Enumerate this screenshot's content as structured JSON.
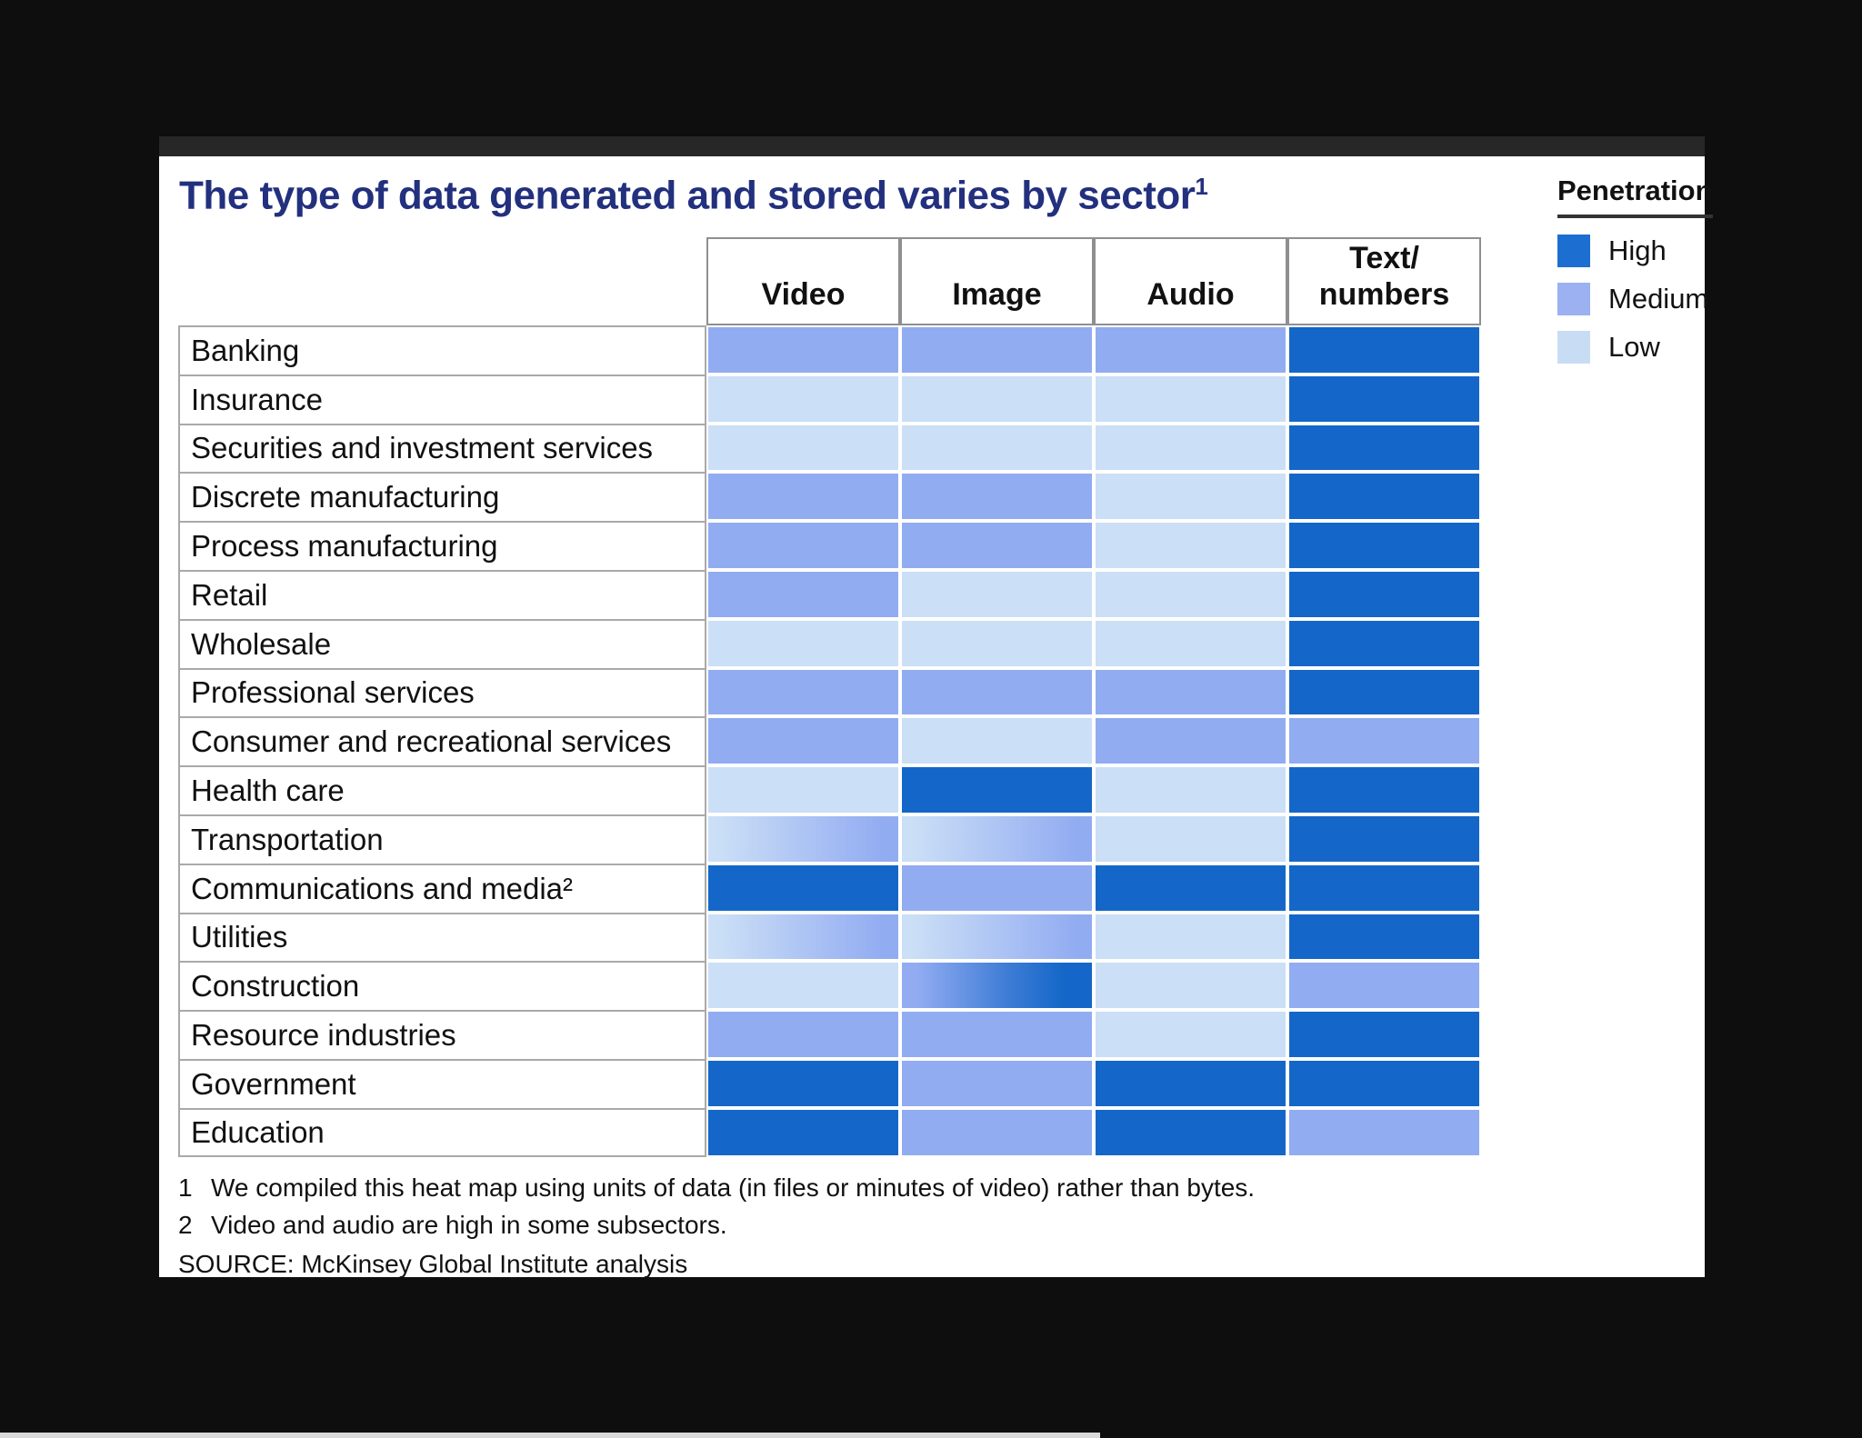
{
  "title": {
    "text": "The type of data generated and stored varies by sector",
    "superscript": "1"
  },
  "legend": {
    "title": "Penetration",
    "items": [
      {
        "label": "High",
        "level": "high"
      },
      {
        "label": "Medium",
        "level": "medium"
      },
      {
        "label": "Low",
        "level": "low"
      }
    ]
  },
  "columns": [
    {
      "label_lines": [
        "Video"
      ]
    },
    {
      "label_lines": [
        "Image"
      ]
    },
    {
      "label_lines": [
        "Audio"
      ]
    },
    {
      "label_lines": [
        "Text/",
        "numbers"
      ]
    }
  ],
  "rows": [
    {
      "label": "Banking",
      "cells": [
        "medium",
        "medium",
        "medium",
        "high"
      ]
    },
    {
      "label": "Insurance",
      "cells": [
        "low",
        "low",
        "low",
        "high"
      ]
    },
    {
      "label": "Securities and investment services",
      "cells": [
        "low",
        "low",
        "low",
        "high"
      ]
    },
    {
      "label": "Discrete manufacturing",
      "cells": [
        "medium",
        "medium",
        "low",
        "high"
      ]
    },
    {
      "label": "Process manufacturing",
      "cells": [
        "medium",
        "medium",
        "low",
        "high"
      ]
    },
    {
      "label": "Retail",
      "cells": [
        "medium",
        "low",
        "low",
        "high"
      ]
    },
    {
      "label": "Wholesale",
      "cells": [
        "low",
        "low",
        "low",
        "high"
      ]
    },
    {
      "label": "Professional services",
      "cells": [
        "medium",
        "medium",
        "medium",
        "high"
      ]
    },
    {
      "label": "Consumer and recreational services",
      "cells": [
        "medium",
        "low",
        "medium",
        "medium"
      ]
    },
    {
      "label": "Health care",
      "cells": [
        "low",
        "high",
        "low",
        "high"
      ]
    },
    {
      "label": "Transportation",
      "cells": [
        "low-medium",
        "low-medium",
        "low",
        "high"
      ]
    },
    {
      "label": "Communications and media²",
      "cells": [
        "high",
        "medium",
        "high",
        "high"
      ]
    },
    {
      "label": "Utilities",
      "cells": [
        "low-medium",
        "low-medium",
        "low",
        "high"
      ]
    },
    {
      "label": "Construction",
      "cells": [
        "low",
        "medium-high",
        "low",
        "medium"
      ]
    },
    {
      "label": "Resource industries",
      "cells": [
        "medium",
        "medium",
        "low",
        "high"
      ]
    },
    {
      "label": "Government",
      "cells": [
        "high",
        "medium",
        "high",
        "high"
      ]
    },
    {
      "label": "Education",
      "cells": [
        "high",
        "medium",
        "high",
        "medium"
      ]
    }
  ],
  "footnotes": [
    {
      "marker": "1",
      "text": "We compiled this heat map using units of data (in files or minutes of video) rather than bytes."
    },
    {
      "marker": "2",
      "text": "Video and audio are high in some subsectors."
    }
  ],
  "source": "SOURCE: McKinsey Global Institute analysis",
  "colors": {
    "high": "#1467c8",
    "medium": "#92acf2",
    "low": "#cbdff6",
    "title": "#23307e",
    "background": "#0e0e0e",
    "panel": "#ffffff"
  },
  "chart_data": {
    "type": "heatmap",
    "title": "The type of data generated and stored varies by sector",
    "legend_title": "Penetration",
    "legend_levels": [
      "High",
      "Medium",
      "Low"
    ],
    "columns": [
      "Video",
      "Image",
      "Audio",
      "Text/numbers"
    ],
    "rows": [
      "Banking",
      "Insurance",
      "Securities and investment services",
      "Discrete manufacturing",
      "Process manufacturing",
      "Retail",
      "Wholesale",
      "Professional services",
      "Consumer and recreational services",
      "Health care",
      "Transportation",
      "Communications and media²",
      "Utilities",
      "Construction",
      "Resource industries",
      "Government",
      "Education"
    ],
    "values": [
      [
        "medium",
        "medium",
        "medium",
        "high"
      ],
      [
        "low",
        "low",
        "low",
        "high"
      ],
      [
        "low",
        "low",
        "low",
        "high"
      ],
      [
        "medium",
        "medium",
        "low",
        "high"
      ],
      [
        "medium",
        "medium",
        "low",
        "high"
      ],
      [
        "medium",
        "low",
        "low",
        "high"
      ],
      [
        "low",
        "low",
        "low",
        "high"
      ],
      [
        "medium",
        "medium",
        "medium",
        "high"
      ],
      [
        "medium",
        "low",
        "medium",
        "medium"
      ],
      [
        "low",
        "high",
        "low",
        "high"
      ],
      [
        "low-to-medium",
        "low-to-medium",
        "low",
        "high"
      ],
      [
        "high",
        "medium",
        "high",
        "high"
      ],
      [
        "low-to-medium",
        "low-to-medium",
        "low",
        "high"
      ],
      [
        "low",
        "medium-to-high",
        "low",
        "medium"
      ],
      [
        "medium",
        "medium",
        "low",
        "high"
      ],
      [
        "high",
        "medium",
        "high",
        "high"
      ],
      [
        "high",
        "medium",
        "high",
        "medium"
      ]
    ]
  }
}
